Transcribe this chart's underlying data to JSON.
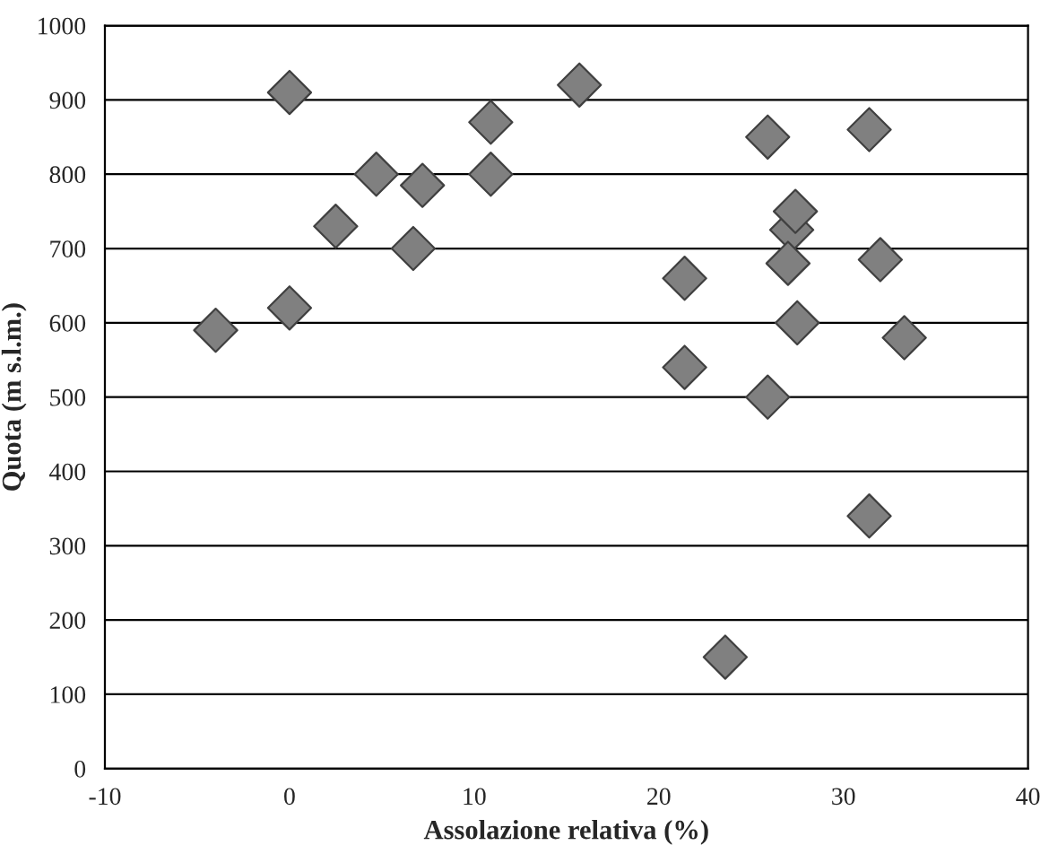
{
  "chart_data": {
    "type": "scatter",
    "xlabel": "Assolazione relativa (%)",
    "ylabel": "Quota (m s.l.m.)",
    "x": [
      -4,
      0,
      0,
      2.5,
      4.7,
      6.7,
      7.2,
      10.9,
      10.9,
      15.7,
      21.4,
      21.4,
      23.6,
      25.9,
      25.9,
      27.2,
      27.4,
      27,
      27.5,
      31.4,
      31.4,
      32,
      33.3
    ],
    "series": [
      {
        "color": "#808080",
        "values": [
          590,
          910,
          620,
          730,
          800,
          700,
          785,
          870,
          800,
          920,
          660,
          540,
          150,
          850,
          500,
          725,
          750,
          680,
          600,
          860,
          340,
          685,
          580
        ]
      }
    ],
    "xlim": [
      -10,
      40
    ],
    "xticks": [
      -10,
      0,
      10,
      20,
      30,
      40
    ],
    "ylim": [
      0,
      1000
    ],
    "yticks": [
      0,
      100,
      200,
      300,
      400,
      500,
      600,
      700,
      800,
      900,
      1000
    ],
    "grid": "y",
    "marker": "diamond",
    "legend": false
  }
}
